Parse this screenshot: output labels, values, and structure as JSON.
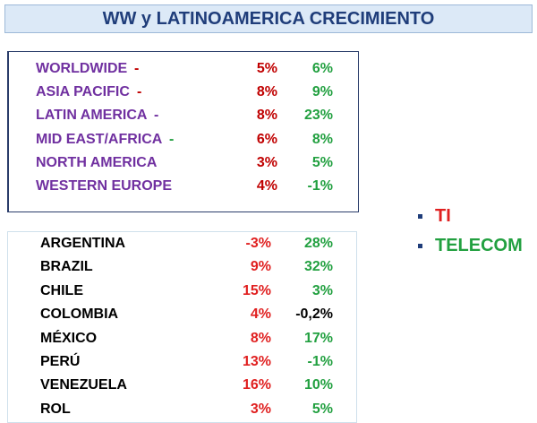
{
  "title": "WW y LATINOAMERICA CRECIMIENTO",
  "regions": [
    {
      "name": "WORLDWIDE",
      "dash": "-",
      "dash_color": "#c00000",
      "ti": "5%",
      "telecom": "6%"
    },
    {
      "name": "ASIA PACIFIC",
      "dash": "-",
      "dash_color": "#c00000",
      "ti": "8%",
      "telecom": "9%"
    },
    {
      "name": "LATIN AMERICA",
      "dash": "-",
      "dash_color": "#7030a0",
      "ti": "8%",
      "telecom": "23%"
    },
    {
      "name": "MID EAST/AFRICA",
      "dash": "-",
      "dash_color": "#22a040",
      "ti": "6%",
      "telecom": "8%"
    },
    {
      "name": "NORTH AMERICA",
      "ti": "3%",
      "telecom": "5%"
    },
    {
      "name": "WESTERN EUROPE",
      "ti": "4%",
      "telecom": "-1%"
    }
  ],
  "countries": [
    {
      "name": "ARGENTINA",
      "ti": "-3%",
      "telecom": "28%"
    },
    {
      "name": "BRAZIL",
      "ti": "9%",
      "telecom": "32%"
    },
    {
      "name": "CHILE",
      "ti": "15%",
      "telecom": "3%"
    },
    {
      "name": "COLOMBIA",
      "ti": "4%",
      "telecom": "-0,2%",
      "telecom_color": "#000000"
    },
    {
      "name": "MÉXICO",
      "ti": "8%",
      "telecom": "17%"
    },
    {
      "name": "PERÚ",
      "ti": "13%",
      "telecom": "-1%"
    },
    {
      "name": "VENEZUELA",
      "ti": "16%",
      "telecom": "10%"
    },
    {
      "name": "ROL",
      "ti": "3%",
      "telecom": "5%"
    }
  ],
  "legend": [
    {
      "label": "TI",
      "color": "#e02020"
    },
    {
      "label": "TELECOM",
      "color": "#22a040"
    }
  ]
}
